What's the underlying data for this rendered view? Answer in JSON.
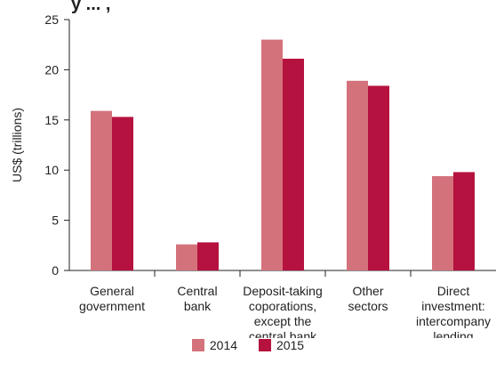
{
  "header": {
    "title_fragment": "y ... ,"
  },
  "chart_data": {
    "type": "bar",
    "ylabel": "US$ (trillions)",
    "xlabel": "",
    "ylim": [
      0,
      25
    ],
    "yticks": [
      0,
      5,
      10,
      15,
      20,
      25
    ],
    "grid": false,
    "legend_position": "bottom-center",
    "categories": [
      [
        "General",
        "government"
      ],
      [
        "Central",
        "bank"
      ],
      [
        "Deposit-taking",
        "coporations,",
        "except the",
        "central bank"
      ],
      [
        "Other",
        "sectors"
      ],
      [
        "Direct",
        "investment:",
        "intercompany",
        "lending"
      ]
    ],
    "series": [
      {
        "name": "2014",
        "color": "#d4727c",
        "values": [
          15.9,
          2.6,
          23.0,
          18.9,
          9.4
        ]
      },
      {
        "name": "2015",
        "color": "#b5123f",
        "values": [
          15.3,
          2.8,
          21.1,
          18.4,
          9.8
        ]
      }
    ]
  }
}
